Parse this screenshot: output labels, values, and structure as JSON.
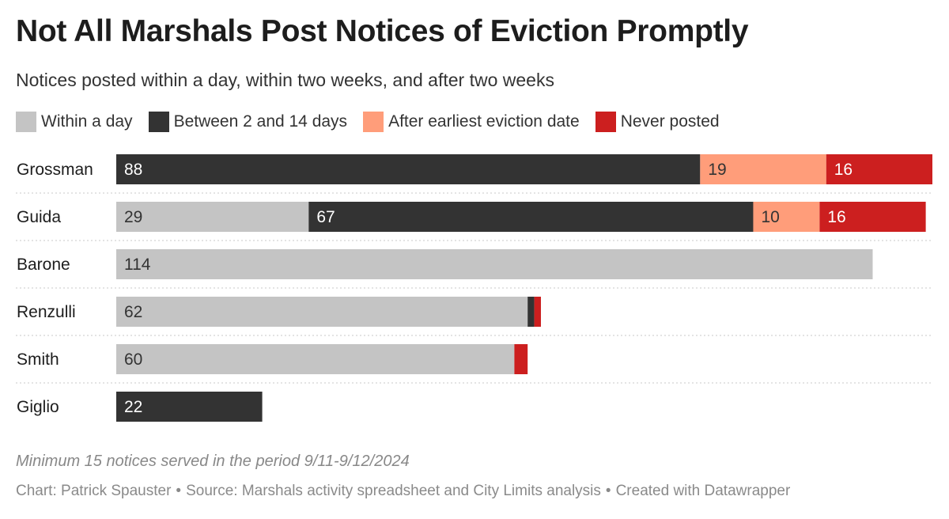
{
  "header": {
    "title": "Not All Marshals Post Notices of Eviction Promptly",
    "subtitle": "Notices posted within a day, within two weeks, and after two weeks"
  },
  "footer": {
    "note": "Minimum 15 notices served in the period 9/11-9/12/2024",
    "chart_credit": "Chart: Patrick Spauster",
    "source": "Source: Marshals activity spreadsheet and City Limits analysis",
    "created_with": "Created with Datawrapper",
    "separator": "•"
  },
  "chart_data": {
    "type": "bar",
    "orientation": "horizontal",
    "stacked": true,
    "title": "Not All Marshals Post Notices of Eviction Promptly",
    "subtitle": "Notices posted within a day, within two weeks, and after two weeks",
    "categories": [
      "Grossman",
      "Guida",
      "Barone",
      "Renzulli",
      "Smith",
      "Giglio"
    ],
    "series": [
      {
        "name": "Within a day",
        "color": "#c4c4c4",
        "label_color": "#333333",
        "values": [
          0,
          29,
          114,
          62,
          60,
          0
        ]
      },
      {
        "name": "Between 2 and 14 days",
        "color": "#333333",
        "label_color": "#ffffff",
        "values": [
          88,
          67,
          0,
          1,
          0,
          22
        ]
      },
      {
        "name": "After earliest eviction date",
        "color": "#ff9d7a",
        "label_color": "#333333",
        "values": [
          19,
          10,
          0,
          0,
          0,
          0
        ]
      },
      {
        "name": "Never posted",
        "color": "#cc1f1f",
        "label_color": "#ffffff",
        "values": [
          16,
          16,
          0,
          1,
          2,
          0
        ]
      }
    ],
    "value_labels": [
      [
        "",
        "29",
        "114",
        "62",
        "60",
        ""
      ],
      [
        "88",
        "67",
        "",
        "",
        "",
        "22"
      ],
      [
        "19",
        "10",
        "",
        "",
        "",
        ""
      ],
      [
        "16",
        "16",
        "",
        "",
        "",
        ""
      ]
    ],
    "xlim": [
      0,
      123
    ],
    "legend_position": "top-left",
    "grid": false,
    "row_separators": "dotted"
  }
}
